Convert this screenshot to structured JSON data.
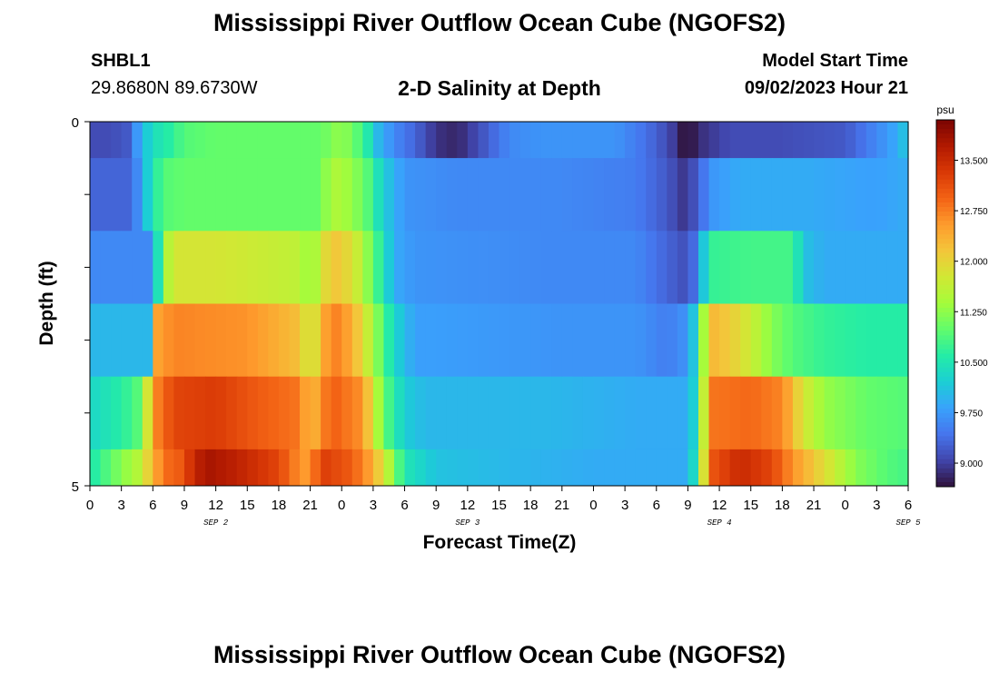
{
  "header": {
    "title": "Mississippi River Outflow Ocean Cube (NGOFS2)",
    "station_name": "SHBL1",
    "station_coords": "29.8680N  89.6730W",
    "subtitle": "2-D Salinity at Depth",
    "model_start_label": "Model Start Time",
    "model_start_value": "09/02/2023 Hour 21"
  },
  "footer": {
    "next_title": "Mississippi River Outflow Ocean Cube (NGOFS2)"
  },
  "colors": {
    "palette": [
      "#30123b",
      "#4145ab",
      "#4675ed",
      "#39a2fc",
      "#1bcfd4",
      "#24eca6",
      "#61fc6c",
      "#a4fc3b",
      "#d1e834",
      "#f3c63a",
      "#fe9b2d",
      "#f36315",
      "#d93806",
      "#b11901",
      "#7a0402"
    ]
  },
  "chart_data": {
    "type": "heatmap",
    "xlabel": "Forecast Time(Z)",
    "ylabel": "Depth (ft)",
    "colorbar_unit": "psu",
    "colorbar_ticks": [
      "13.500",
      "12.750",
      "12.000",
      "11.250",
      "10.500",
      "9.750",
      "9.000"
    ],
    "colorbar_tick_values": [
      13.5,
      12.75,
      12.0,
      11.25,
      10.5,
      9.75,
      9.0
    ],
    "color_range": [
      8.65,
      14.1
    ],
    "y_tick_labels": [
      "0",
      "5"
    ],
    "y_range": [
      0,
      5
    ],
    "x_tick_labels": [
      "0",
      "3",
      "6",
      "9",
      "12",
      "15",
      "18",
      "21",
      "0",
      "3",
      "6",
      "9",
      "12",
      "15",
      "18",
      "21",
      "0",
      "3",
      "6",
      "9",
      "12",
      "15",
      "18",
      "21",
      "0",
      "3",
      "6"
    ],
    "date_labels": [
      {
        "label": "SEP 2",
        "hour": 12
      },
      {
        "label": "SEP 3",
        "hour": 36
      },
      {
        "label": "SEP 4",
        "hour": 60
      },
      {
        "label": "SEP 5",
        "hour": 78
      }
    ],
    "x_range_hours": [
      0,
      78
    ],
    "depth_bands": [
      "0-0.5",
      "0.5-1.5",
      "1.5-2.5",
      "2.5-3.5",
      "3.5-4.5",
      "4.5-5"
    ],
    "time_profiles": [
      [
        [
          0,
          9.1
        ],
        [
          2,
          9.1
        ],
        [
          3.5,
          9.2
        ],
        [
          5,
          10.0
        ],
        [
          6,
          10.4
        ],
        [
          7.5,
          10.6
        ],
        [
          9,
          10.9
        ],
        [
          12,
          11.0
        ],
        [
          20,
          11.0
        ],
        [
          22,
          11.0
        ],
        [
          24,
          11.3
        ],
        [
          26,
          10.8
        ],
        [
          27.5,
          10.0
        ],
        [
          29,
          9.6
        ],
        [
          31,
          9.3
        ],
        [
          33,
          8.9
        ],
        [
          35,
          8.8
        ],
        [
          37,
          9.1
        ],
        [
          40,
          9.6
        ],
        [
          43,
          9.7
        ],
        [
          50,
          9.7
        ],
        [
          53,
          9.4
        ],
        [
          55,
          9.1
        ],
        [
          56.2,
          8.85
        ],
        [
          56.7,
          8.6
        ],
        [
          57.2,
          8.65
        ],
        [
          58,
          8.85
        ],
        [
          61,
          9.1
        ],
        [
          66,
          9.1
        ],
        [
          72,
          9.2
        ],
        [
          75,
          9.6
        ],
        [
          77,
          9.9
        ],
        [
          78,
          10.2
        ]
      ],
      [
        [
          0,
          9.3
        ],
        [
          4,
          9.3
        ],
        [
          5,
          9.9
        ],
        [
          6,
          10.5
        ],
        [
          7,
          10.9
        ],
        [
          9,
          11.0
        ],
        [
          18,
          11.0
        ],
        [
          22,
          11.0
        ],
        [
          23,
          11.5
        ],
        [
          25,
          11.3
        ],
        [
          26.5,
          10.9
        ],
        [
          28,
          10.2
        ],
        [
          30,
          9.7
        ],
        [
          35,
          9.6
        ],
        [
          45,
          9.6
        ],
        [
          52,
          9.5
        ],
        [
          55,
          9.2
        ],
        [
          56.5,
          8.95
        ],
        [
          58,
          9.2
        ],
        [
          59,
          9.7
        ],
        [
          62,
          9.9
        ],
        [
          68,
          9.9
        ],
        [
          75,
          9.8
        ],
        [
          78,
          9.9
        ]
      ],
      [
        [
          0,
          9.6
        ],
        [
          6,
          9.6
        ],
        [
          7,
          11.3
        ],
        [
          8,
          11.8
        ],
        [
          12,
          11.8
        ],
        [
          20,
          11.6
        ],
        [
          21,
          11.2
        ],
        [
          23,
          12.2
        ],
        [
          25,
          11.9
        ],
        [
          27,
          11.0
        ],
        [
          29,
          9.9
        ],
        [
          31,
          9.7
        ],
        [
          44,
          9.6
        ],
        [
          52,
          9.6
        ],
        [
          55,
          9.3
        ],
        [
          57,
          9.1
        ],
        [
          58,
          9.6
        ],
        [
          59,
          10.7
        ],
        [
          63,
          10.8
        ],
        [
          67,
          10.8
        ],
        [
          68,
          10.1
        ],
        [
          70,
          9.9
        ],
        [
          78,
          9.9
        ]
      ],
      [
        [
          0,
          10.0
        ],
        [
          5.5,
          10.0
        ],
        [
          6,
          12.4
        ],
        [
          8,
          12.7
        ],
        [
          15,
          12.6
        ],
        [
          20,
          12.2
        ],
        [
          21,
          11.6
        ],
        [
          23,
          12.8
        ],
        [
          25,
          12.4
        ],
        [
          27,
          11.4
        ],
        [
          29,
          10.3
        ],
        [
          31,
          9.8
        ],
        [
          44,
          9.7
        ],
        [
          52,
          9.7
        ],
        [
          55,
          9.5
        ],
        [
          57,
          9.7
        ],
        [
          58,
          10.5
        ],
        [
          59,
          12.3
        ],
        [
          61,
          12.1
        ],
        [
          63,
          11.7
        ],
        [
          65,
          11.2
        ],
        [
          67,
          10.9
        ],
        [
          70,
          10.7
        ],
        [
          74,
          10.6
        ],
        [
          78,
          10.6
        ]
      ],
      [
        [
          0,
          10.3
        ],
        [
          3,
          10.6
        ],
        [
          5,
          11.0
        ],
        [
          6,
          12.6
        ],
        [
          8,
          13.2
        ],
        [
          12,
          13.3
        ],
        [
          16,
          13.0
        ],
        [
          20,
          12.8
        ],
        [
          21,
          12.2
        ],
        [
          23,
          13.0
        ],
        [
          26,
          12.6
        ],
        [
          28,
          11.0
        ],
        [
          30,
          10.2
        ],
        [
          32,
          10.0
        ],
        [
          44,
          10.0
        ],
        [
          52,
          9.9
        ],
        [
          57,
          9.9
        ],
        [
          58,
          10.5
        ],
        [
          59,
          12.8
        ],
        [
          63,
          12.9
        ],
        [
          66,
          12.7
        ],
        [
          68,
          11.8
        ],
        [
          70,
          11.3
        ],
        [
          74,
          11.0
        ],
        [
          78,
          10.9
        ]
      ],
      [
        [
          0,
          10.5
        ],
        [
          3,
          11.2
        ],
        [
          5,
          11.6
        ],
        [
          6,
          12.4
        ],
        [
          7.5,
          12.9
        ],
        [
          8.4,
          13.0
        ],
        [
          8.5,
          13.0
        ],
        [
          9,
          13.2
        ],
        [
          11,
          13.8
        ],
        [
          14,
          13.6
        ],
        [
          18,
          13.2
        ],
        [
          20,
          12.6
        ],
        [
          21,
          12.5
        ],
        [
          22,
          13.3
        ],
        [
          25,
          13.0
        ],
        [
          27,
          12.4
        ],
        [
          28.5,
          11.5
        ],
        [
          30,
          10.5
        ],
        [
          33,
          10.1
        ],
        [
          40,
          10.0
        ],
        [
          48,
          9.9
        ],
        [
          57,
          9.9
        ],
        [
          58,
          10.7
        ],
        [
          59,
          13.0
        ],
        [
          62,
          13.5
        ],
        [
          65,
          13.2
        ],
        [
          67,
          12.6
        ],
        [
          70,
          11.9
        ],
        [
          73,
          11.2
        ],
        [
          76,
          10.9
        ],
        [
          78,
          10.8
        ]
      ]
    ]
  }
}
